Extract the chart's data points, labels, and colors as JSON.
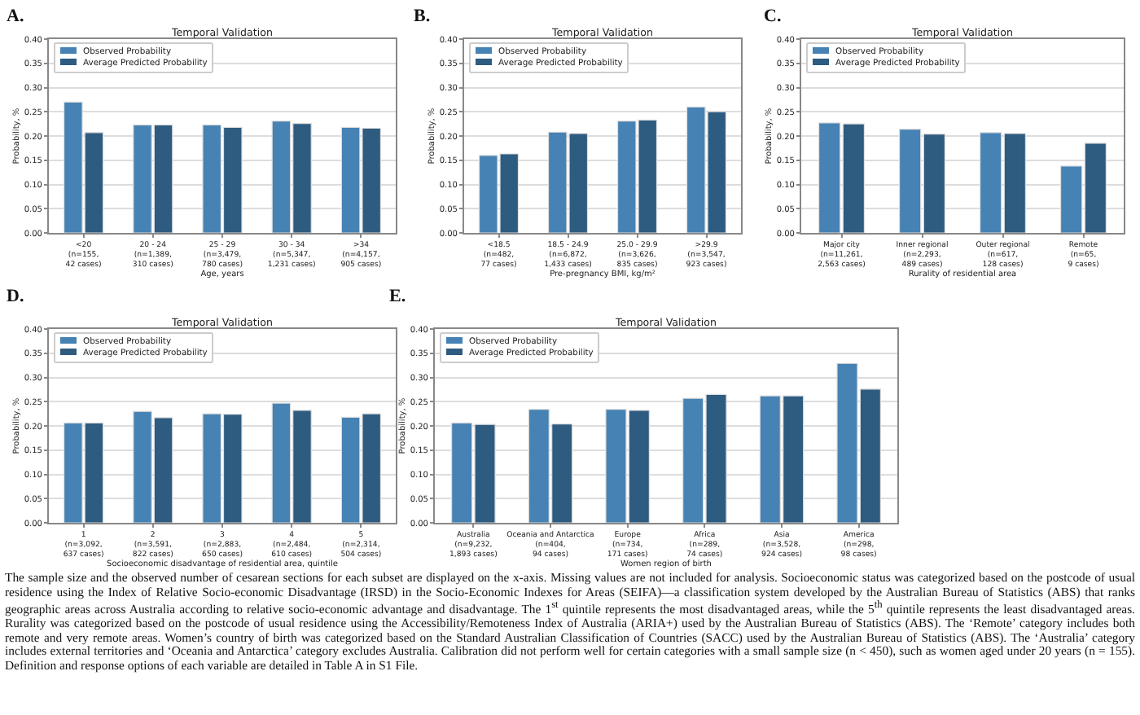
{
  "chart_data": [
    {
      "type": "bar",
      "title": "Temporal Validation",
      "xlabel": "Age, years",
      "ylabel": "Probability, %",
      "annotations": [
        "A."
      ],
      "categories": [
        "<20\n(n=155,\n42 cases)",
        "20 - 24\n(n=1,389,\n310 cases)",
        "25 - 29\n(n=3,479,\n780 cases)",
        "30 - 34\n(n=5,347,\n1,231 cases)",
        ">34\n(n=4,157,\n905 cases)"
      ],
      "series": [
        {
          "name": "Observed Probability",
          "color": "#4682b4",
          "values": [
            0.27,
            0.223,
            0.223,
            0.231,
            0.218
          ]
        },
        {
          "name": "Average Predicted Probability",
          "color": "#2e5b80",
          "values": [
            0.207,
            0.223,
            0.218,
            0.226,
            0.216
          ]
        }
      ],
      "ylim": [
        0,
        0.4
      ],
      "yticks": [
        {
          "value": 0,
          "label": "0.00"
        },
        {
          "value": 0.05,
          "label": "0.05"
        },
        {
          "value": 0.1,
          "label": "0.10"
        },
        {
          "value": 0.15,
          "label": "0.15"
        },
        {
          "value": 0.2,
          "label": "0.20"
        },
        {
          "value": 0.25,
          "label": "0.25"
        },
        {
          "value": 0.3,
          "label": "0.30"
        },
        {
          "value": 0.35,
          "label": "0.35"
        },
        {
          "value": 0.4,
          "label": "0.40"
        }
      ],
      "grid": "y",
      "legend": "top left"
    },
    {
      "type": "bar",
      "title": "Temporal Validation",
      "xlabel": "Pre-pregnancy BMI, kg/m²",
      "ylabel": "Probability, %",
      "annotations": [
        "B."
      ],
      "categories": [
        "<18.5\n(n=482,\n77 cases)",
        "18.5 - 24.9\n(n=6,872,\n1,433 cases)",
        "25.0 - 29.9\n(n=3,626,\n835 cases)",
        ">29.9\n(n=3,547,\n923 cases)"
      ],
      "series": [
        {
          "name": "Observed Probability",
          "color": "#4682b4",
          "values": [
            0.16,
            0.208,
            0.231,
            0.26
          ]
        },
        {
          "name": "Average Predicted Probability",
          "color": "#2e5b80",
          "values": [
            0.163,
            0.205,
            0.233,
            0.25
          ]
        }
      ],
      "ylim": [
        0,
        0.4
      ],
      "yticks": [
        {
          "value": 0,
          "label": "0.00"
        },
        {
          "value": 0.05,
          "label": "0.05"
        },
        {
          "value": 0.1,
          "label": "0.10"
        },
        {
          "value": 0.15,
          "label": "0.15"
        },
        {
          "value": 0.2,
          "label": "0.20"
        },
        {
          "value": 0.25,
          "label": "0.25"
        },
        {
          "value": 0.3,
          "label": "0.30"
        },
        {
          "value": 0.35,
          "label": "0.35"
        },
        {
          "value": 0.4,
          "label": "0.40"
        }
      ],
      "grid": "y",
      "legend": "top left"
    },
    {
      "type": "bar",
      "title": "Temporal Validation",
      "xlabel": "Rurality of residential area",
      "ylabel": "Probability, %",
      "annotations": [
        "C."
      ],
      "categories": [
        "Major city\n(n=11,261,\n2,563 cases)",
        "Inner regional\n(n=2,293,\n489 cases)",
        "Outer regional\n(n=617,\n128 cases)",
        "Remote\n(n=65,\n9 cases)"
      ],
      "series": [
        {
          "name": "Observed Probability",
          "color": "#4682b4",
          "values": [
            0.227,
            0.214,
            0.207,
            0.138
          ]
        },
        {
          "name": "Average Predicted Probability",
          "color": "#2e5b80",
          "values": [
            0.225,
            0.204,
            0.205,
            0.185
          ]
        }
      ],
      "ylim": [
        0,
        0.4
      ],
      "yticks": [
        {
          "value": 0,
          "label": "0.00"
        },
        {
          "value": 0.05,
          "label": "0.05"
        },
        {
          "value": 0.1,
          "label": "0.10"
        },
        {
          "value": 0.15,
          "label": "0.15"
        },
        {
          "value": 0.2,
          "label": "0.20"
        },
        {
          "value": 0.25,
          "label": "0.25"
        },
        {
          "value": 0.3,
          "label": "0.30"
        },
        {
          "value": 0.35,
          "label": "0.35"
        },
        {
          "value": 0.4,
          "label": "0.40"
        }
      ],
      "grid": "y",
      "legend": "top left"
    },
    {
      "type": "bar",
      "title": "Temporal Validation",
      "xlabel": "Socioeconomic disadvantage of residential area, quintile",
      "ylabel": "Probability, %",
      "annotations": [
        "D."
      ],
      "categories": [
        "1\n(n=3,092,\n637 cases)",
        "2\n(n=3,591,\n822 cases)",
        "3\n(n=2,883,\n650 cases)",
        "4\n(n=2,484,\n610 cases)",
        "5\n(n=2,314,\n504 cases)"
      ],
      "series": [
        {
          "name": "Observed Probability",
          "color": "#4682b4",
          "values": [
            0.206,
            0.23,
            0.225,
            0.247,
            0.218
          ]
        },
        {
          "name": "Average Predicted Probability",
          "color": "#2e5b80",
          "values": [
            0.206,
            0.217,
            0.224,
            0.232,
            0.225
          ]
        }
      ],
      "ylim": [
        0,
        0.4
      ],
      "yticks": [
        {
          "value": 0,
          "label": "0.00"
        },
        {
          "value": 0.05,
          "label": "0.05"
        },
        {
          "value": 0.1,
          "label": "0.10"
        },
        {
          "value": 0.15,
          "label": "0.15"
        },
        {
          "value": 0.2,
          "label": "0.20"
        },
        {
          "value": 0.25,
          "label": "0.25"
        },
        {
          "value": 0.3,
          "label": "0.30"
        },
        {
          "value": 0.35,
          "label": "0.35"
        },
        {
          "value": 0.4,
          "label": "0.40"
        }
      ],
      "grid": "y",
      "legend": "top left"
    },
    {
      "type": "bar",
      "title": "Temporal Validation",
      "xlabel": "Women region of birth",
      "ylabel": "Probability, %",
      "annotations": [
        "E.",
        "The sample size and the observed number of cesarean sections for each subset are displayed on the x-axis. Missing values are not included for analysis. Socioeconomic status was categorized based on the postcode of usual residence using the Index of Relative Socio-economic Disadvantage (IRSD) in the Socio-Economic Indexes for Areas (SEIFA)—a classification system developed by the Australian Bureau of Statistics (ABS) that ranks geographic areas across Australia according to relative socio-economic advantage and disadvantage. The 1$^{st}$ quintile represents the most disadvantaged areas, while the 5$^{th}$ quintile represents the least disadvantaged areas. Rurality was categorized based on the postcode of usual residence using the Accessibility/Remoteness Index of Australia (ARIA+) used by the Australian Bureau of Statistics (ABS). The ‘Remote’ category includes both remote and very remote areas. Women’s country of birth was categorized based on the Standard Australian Classification of Countries (SACC) used by the Australian Bureau of Statistics (ABS). The ‘Australia’ category includes external territories and ‘Oceania and Antarctica’ category excludes Australia. Calibration did not perform well for certain categories with a small sample size (n < 450), such as women aged under 20 years (n = 155). Definition and response options of each variable are detailed in Table A in S1 File."
      ],
      "categories": [
        "Australia\n(n=9,232,\n1,893 cases)",
        "Oceania and Antarctica\n(n=404,\n94 cases)",
        "Europe\n(n=734,\n171 cases)",
        "Africa\n(n=289,\n74 cases)",
        "Asia\n(n=3,528,\n924 cases)",
        "America\n(n=298,\n98 cases)"
      ],
      "series": [
        {
          "name": "Observed Probability",
          "color": "#4682b4",
          "values": [
            0.206,
            0.234,
            0.234,
            0.257,
            0.262,
            0.329
          ]
        },
        {
          "name": "Average Predicted Probability",
          "color": "#2e5b80",
          "values": [
            0.203,
            0.204,
            0.232,
            0.265,
            0.262,
            0.276
          ]
        }
      ],
      "ylim": [
        0,
        0.4
      ],
      "yticks": [
        {
          "value": 0,
          "label": "0.00"
        },
        {
          "value": 0.05,
          "label": "0.05"
        },
        {
          "value": 0.1,
          "label": "0.10"
        },
        {
          "value": 0.15,
          "label": "0.15"
        },
        {
          "value": 0.2,
          "label": "0.20"
        },
        {
          "value": 0.25,
          "label": "0.25"
        },
        {
          "value": 0.3,
          "label": "0.30"
        },
        {
          "value": 0.35,
          "label": "0.35"
        },
        {
          "value": 0.4,
          "label": "0.40"
        }
      ],
      "grid": "y",
      "legend": "top left"
    }
  ]
}
